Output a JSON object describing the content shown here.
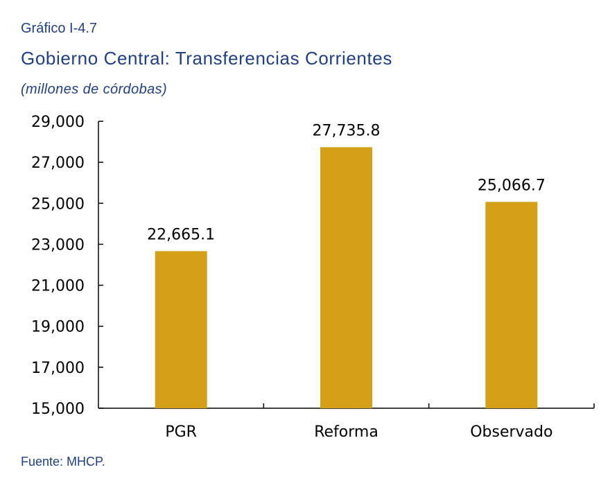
{
  "figure": {
    "label": "Gráfico I-4.7",
    "source": "Fuente: MHCP."
  },
  "chart_data": {
    "type": "bar",
    "title": "Gobierno Central: Transferencias Corrientes",
    "subtitle": "(millones de córdobas)",
    "xlabel": "",
    "ylabel": "",
    "categories": [
      "PGR",
      "Reforma",
      "Observado"
    ],
    "values": [
      22665.1,
      27735.8,
      25066.7
    ],
    "data_labels": [
      "22,665.1",
      "27,735.8",
      "25,066.7"
    ],
    "ylim": [
      15000,
      29000
    ],
    "yticks": [
      15000,
      17000,
      19000,
      21000,
      23000,
      25000,
      27000,
      29000
    ],
    "ytick_labels": [
      "15,000",
      "17,000",
      "19,000",
      "21,000",
      "23,000",
      "25,000",
      "27,000",
      "29,000"
    ],
    "bar_color": "#d4a017",
    "grid": false,
    "legend": "none"
  }
}
